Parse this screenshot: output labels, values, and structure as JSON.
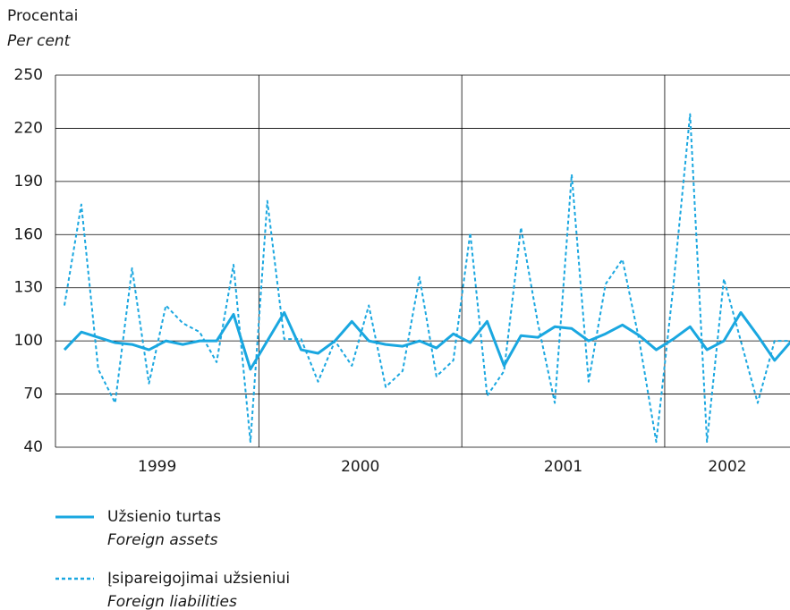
{
  "chart_data": {
    "type": "line",
    "y_label": "Procentai",
    "y_label_en": "Per cent",
    "categories": [
      null,
      null,
      null,
      null,
      null,
      null,
      null,
      null,
      null,
      null,
      null,
      null,
      null,
      null,
      null,
      null,
      null,
      null,
      null,
      null,
      null,
      null,
      null,
      null,
      null,
      null,
      null,
      null,
      null,
      null,
      null,
      null,
      null,
      null,
      null,
      null,
      null,
      null,
      null,
      null,
      null,
      null,
      null,
      null
    ],
    "year_labels": [
      "1999",
      "2000",
      "2001",
      "2002"
    ],
    "series": [
      {
        "name": "Užsienio turtas",
        "name_en": "Foreign assets",
        "color": "#1aa7e0",
        "dash": false,
        "values": [
          95,
          105,
          102,
          99,
          98,
          95,
          100,
          98,
          100,
          100,
          115,
          84,
          100,
          116,
          95,
          93,
          100,
          111,
          100,
          98,
          97,
          100,
          96,
          104,
          99,
          111,
          86,
          103,
          102,
          108,
          107,
          100,
          104,
          109,
          103,
          95,
          101,
          108,
          95,
          100,
          116,
          103,
          89,
          100
        ]
      },
      {
        "name": "Įsipareigojimai užsieniui",
        "name_en": "Foreign liabilities",
        "color": "#1aa7e0",
        "dash": true,
        "values": [
          120,
          177,
          84,
          65,
          141,
          76,
          120,
          110,
          105,
          88,
          143,
          43,
          179,
          101,
          101,
          77,
          100,
          86,
          120,
          74,
          83,
          136,
          80,
          89,
          161,
          69,
          83,
          164,
          110,
          65,
          194,
          77,
          132,
          146,
          100,
          43,
          130,
          228,
          43,
          135,
          100,
          65,
          100,
          100
        ]
      }
    ],
    "ylim": [
      40,
      250
    ],
    "yticks": [
      40,
      70,
      100,
      130,
      160,
      190,
      220,
      250
    ],
    "grid": true
  }
}
